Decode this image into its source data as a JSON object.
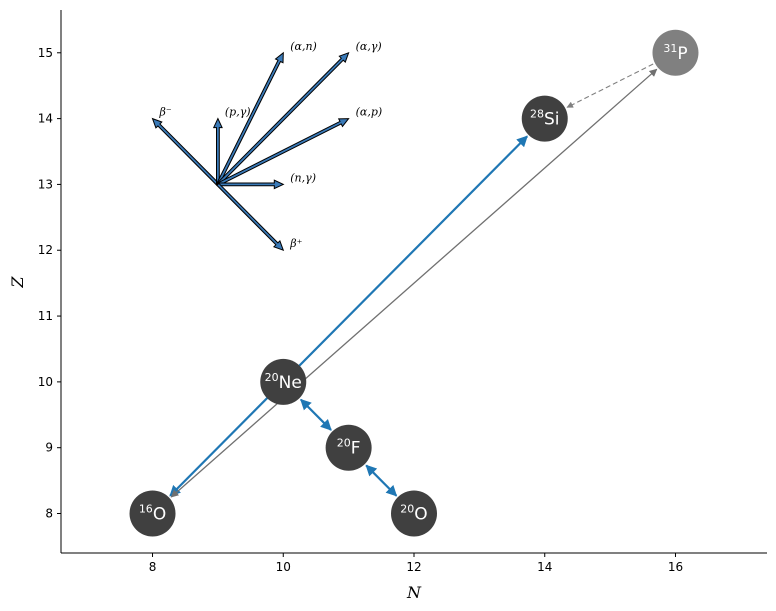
{
  "chart_data": {
    "type": "scatter",
    "xlabel": "N",
    "ylabel": "Z",
    "xlim": [
      6.6,
      17.4
    ],
    "ylim": [
      7.4,
      15.65
    ],
    "xticks": [
      8,
      10,
      12,
      14,
      16
    ],
    "yticks": [
      8,
      9,
      10,
      11,
      12,
      13,
      14,
      15
    ],
    "grid": false,
    "nuclides": [
      {
        "id": "O16",
        "mass": "16",
        "symbol": "O",
        "N": 8,
        "Z": 8,
        "color": "#404040"
      },
      {
        "id": "Ne20",
        "mass": "20",
        "symbol": "Ne",
        "N": 10,
        "Z": 10,
        "color": "#404040"
      },
      {
        "id": "F20",
        "mass": "20",
        "symbol": "F",
        "N": 11,
        "Z": 9,
        "color": "#404040"
      },
      {
        "id": "O20",
        "mass": "20",
        "symbol": "O",
        "N": 12,
        "Z": 8,
        "color": "#404040"
      },
      {
        "id": "Si28",
        "mass": "28",
        "symbol": "Si",
        "N": 14,
        "Z": 14,
        "color": "#404040"
      },
      {
        "id": "P31",
        "mass": "31",
        "symbol": "P",
        "N": 16,
        "Z": 15,
        "color": "#808080"
      }
    ],
    "links": [
      {
        "from": "O16",
        "to": "Si28",
        "style": "blue",
        "heads": "both",
        "color": "#1f77b4"
      },
      {
        "from": "O16",
        "to": "P31",
        "style": "gray",
        "heads": "both",
        "color": "#707070"
      },
      {
        "from": "Ne20",
        "to": "F20",
        "style": "blue",
        "heads": "both",
        "color": "#1f77b4"
      },
      {
        "from": "F20",
        "to": "O20",
        "style": "blue",
        "heads": "both",
        "color": "#1f77b4"
      },
      {
        "from": "P31",
        "to": "Si28",
        "style": "dashed",
        "heads": "end",
        "color": "#808080"
      }
    ],
    "reaction_key": {
      "origin": [
        9,
        13
      ],
      "fill": "#3a7ab8",
      "arrows": [
        {
          "label": "β⁻",
          "dN": -1,
          "dZ": 1
        },
        {
          "label": "(p,γ)",
          "dN": 0,
          "dZ": 1
        },
        {
          "label": "(α,n)",
          "dN": 1,
          "dZ": 2
        },
        {
          "label": "(α,γ)",
          "dN": 2,
          "dZ": 2
        },
        {
          "label": "(α,p)",
          "dN": 2,
          "dZ": 1
        },
        {
          "label": "(n,γ)",
          "dN": 1,
          "dZ": 0
        },
        {
          "label": "β⁺",
          "dN": 1,
          "dZ": -1
        }
      ]
    }
  }
}
